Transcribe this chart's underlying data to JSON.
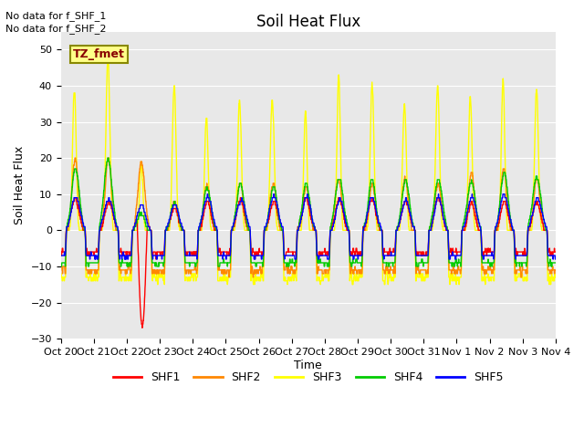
{
  "title": "Soil Heat Flux",
  "ylabel": "Soil Heat Flux",
  "xlabel": "Time",
  "annotation_line1": "No data for f_SHF_1",
  "annotation_line2": "No data for f_SHF_2",
  "tz_label": "TZ_fmet",
  "ylim": [
    -30,
    55
  ],
  "yticks": [
    -30,
    -20,
    -10,
    0,
    10,
    20,
    30,
    40,
    50
  ],
  "colors": {
    "SHF1": "#ff0000",
    "SHF2": "#ff8800",
    "SHF3": "#ffff00",
    "SHF4": "#00cc00",
    "SHF5": "#0000ff"
  },
  "x_tick_labels": [
    "Oct 20",
    "Oct 21",
    "Oct 22",
    "Oct 23",
    "Oct 24",
    "Oct 25",
    "Oct 26",
    "Oct 27",
    "Oct 28",
    "Oct 29",
    "Oct 30",
    "Oct 31",
    "Nov 1",
    "Nov 2",
    "Nov 3",
    "Nov 4"
  ],
  "n_days": 15,
  "pts_per_day": 144,
  "background_color": "#e8e8e8",
  "figure_background": "#ffffff",
  "grid_color": "#ffffff",
  "title_fontsize": 12,
  "axis_fontsize": 9,
  "tick_fontsize": 8
}
